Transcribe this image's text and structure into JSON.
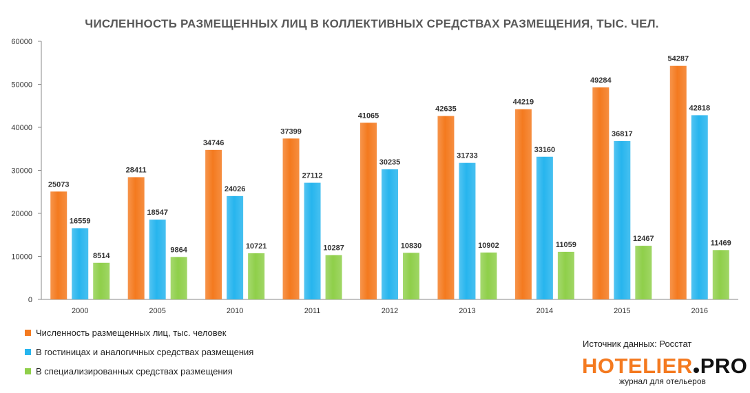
{
  "chart_data": {
    "type": "bar",
    "title": "ЧИСЛЕННОСТЬ  РАЗМЕЩЕННЫХ  ЛИЦ В КОЛЛЕКТИВНЫХ  СРЕДСТВАХ РАЗМЕЩЕНИЯ, ТЫС. ЧЕЛ.",
    "categories": [
      "2000",
      "2005",
      "2010",
      "2011",
      "2012",
      "2013",
      "2014",
      "2015",
      "2016"
    ],
    "series": [
      {
        "name": "Численность размещенных лиц, тыс. человек",
        "color": "#f47a1f",
        "values": [
          25073,
          28411,
          34746,
          37399,
          41065,
          42635,
          44219,
          49284,
          54287
        ]
      },
      {
        "name": "В  гостиницах и аналогичных средствах размещения",
        "color": "#27b5ee",
        "values": [
          16559,
          18547,
          24026,
          27112,
          30235,
          31733,
          33160,
          36817,
          42818
        ]
      },
      {
        "name": "В специализированных  средствах размещения",
        "color": "#8fcf4a",
        "values": [
          8514,
          9864,
          10721,
          10287,
          10830,
          10902,
          11059,
          12467,
          11469
        ]
      }
    ],
    "ylim": [
      0,
      60000
    ],
    "yticks": [
      "0",
      "10000",
      "20000",
      "30000",
      "40000",
      "50000",
      "60000"
    ],
    "grid": false,
    "legend_position": "bottom-left"
  },
  "footer": {
    "source": "Источник данных: Росстат",
    "logo_name": "HOTELIER",
    "logo_ext": "PRO",
    "logo_tagline": "журнал для отельеров"
  }
}
